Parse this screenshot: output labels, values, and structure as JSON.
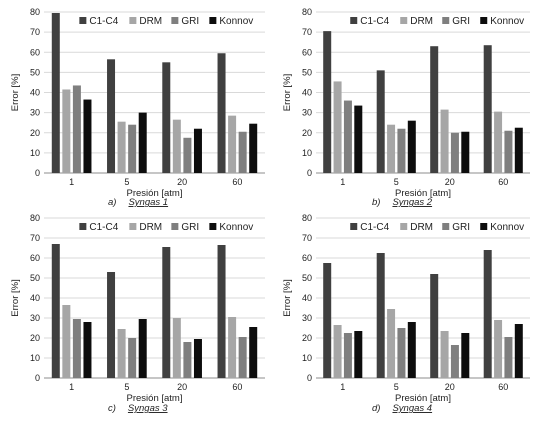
{
  "chart_data": [
    {
      "type": "bar",
      "caption_letter": "a)",
      "caption_name": "Syngas 1",
      "xlabel": "Presión [atm]",
      "ylabel": "Error [%]",
      "categories": [
        "1",
        "5",
        "20",
        "60"
      ],
      "ylim": [
        0,
        80
      ],
      "yticks": [
        0,
        10,
        20,
        30,
        40,
        50,
        60,
        70,
        80
      ],
      "grid": true,
      "legend_position": "top",
      "series": [
        {
          "name": "C1-C4",
          "color": "#404040",
          "values": [
            79.5,
            56.5,
            55,
            59.5
          ]
        },
        {
          "name": "DRM",
          "color": "#a6a6a6",
          "values": [
            41.5,
            25.5,
            26.5,
            28.5
          ]
        },
        {
          "name": "GRI",
          "color": "#7f7f7f",
          "values": [
            43.5,
            24,
            17.5,
            20.5
          ]
        },
        {
          "name": "Konnov",
          "color": "#0d0d0d",
          "values": [
            36.5,
            30,
            22,
            24.5
          ]
        }
      ]
    },
    {
      "type": "bar",
      "caption_letter": "b)",
      "caption_name": "Syngas 2",
      "xlabel": "Presión [atm]",
      "ylabel": "Error [%]",
      "categories": [
        "1",
        "5",
        "20",
        "60"
      ],
      "ylim": [
        0,
        80
      ],
      "yticks": [
        0,
        10,
        20,
        30,
        40,
        50,
        60,
        70,
        80
      ],
      "grid": true,
      "legend_position": "top",
      "series": [
        {
          "name": "C1-C4",
          "color": "#404040",
          "values": [
            70.5,
            51,
            63,
            63.5
          ]
        },
        {
          "name": "DRM",
          "color": "#a6a6a6",
          "values": [
            45.5,
            24,
            31.5,
            30.5
          ]
        },
        {
          "name": "GRI",
          "color": "#7f7f7f",
          "values": [
            36,
            22,
            20,
            21
          ]
        },
        {
          "name": "Konnov",
          "color": "#0d0d0d",
          "values": [
            33.5,
            26,
            20.5,
            22.5
          ]
        }
      ]
    },
    {
      "type": "bar",
      "caption_letter": "c)",
      "caption_name": "Syngas 3",
      "xlabel": "Presión [atm]",
      "ylabel": "Error [%]",
      "categories": [
        "1",
        "5",
        "20",
        "60"
      ],
      "ylim": [
        0,
        80
      ],
      "yticks": [
        0,
        10,
        20,
        30,
        40,
        50,
        60,
        70,
        80
      ],
      "grid": true,
      "legend_position": "top",
      "series": [
        {
          "name": "C1-C4",
          "color": "#404040",
          "values": [
            67,
            53,
            65.5,
            66.5
          ]
        },
        {
          "name": "DRM",
          "color": "#a6a6a6",
          "values": [
            36.5,
            24.5,
            30,
            30.5
          ]
        },
        {
          "name": "GRI",
          "color": "#7f7f7f",
          "values": [
            29.5,
            20,
            18,
            20.5
          ]
        },
        {
          "name": "Konnov",
          "color": "#0d0d0d",
          "values": [
            28,
            29.5,
            19.5,
            25.5
          ]
        }
      ]
    },
    {
      "type": "bar",
      "caption_letter": "d)",
      "caption_name": "Syngas 4",
      "xlabel": "Presión [atm]",
      "ylabel": "Error [%]",
      "categories": [
        "1",
        "5",
        "20",
        "60"
      ],
      "ylim": [
        0,
        80
      ],
      "yticks": [
        0,
        10,
        20,
        30,
        40,
        50,
        60,
        70,
        80
      ],
      "grid": true,
      "legend_position": "top",
      "series": [
        {
          "name": "C1-C4",
          "color": "#404040",
          "values": [
            57.5,
            62.5,
            52,
            64
          ]
        },
        {
          "name": "DRM",
          "color": "#a6a6a6",
          "values": [
            26.5,
            34.5,
            23.5,
            29
          ]
        },
        {
          "name": "GRI",
          "color": "#7f7f7f",
          "values": [
            22.5,
            25,
            16.5,
            20.5
          ]
        },
        {
          "name": "Konnov",
          "color": "#0d0d0d",
          "values": [
            23.5,
            28,
            22.5,
            27
          ]
        }
      ]
    }
  ]
}
